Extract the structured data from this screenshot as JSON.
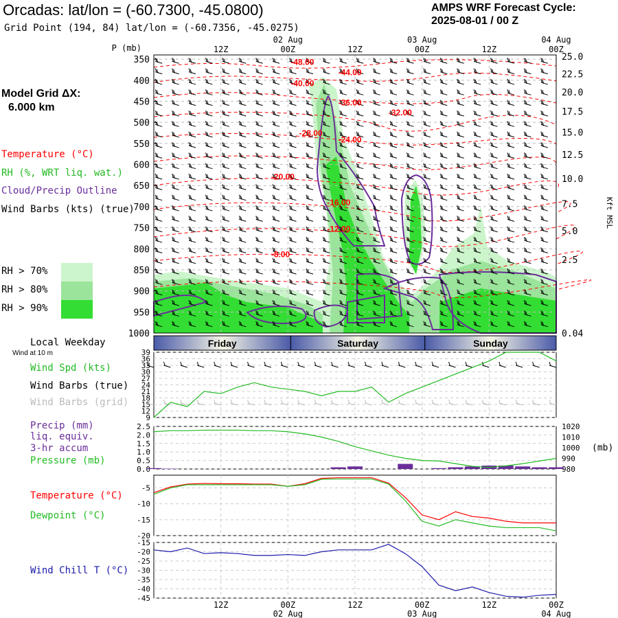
{
  "header": {
    "title": "Orcadas:  lat/lon = (-60.7300, -45.0800)",
    "subtitle": "Grid Point (194, 84) lat/lon = (-60.7356, -45.0275)",
    "cycle_label": "AMPS WRF Forecast Cycle:",
    "cycle_value": "2025-08-01 / 00  Z",
    "grid_label": "Model Grid ΔX:",
    "grid_value": "6.000 km"
  },
  "colors": {
    "temperature": "#ff0000",
    "rh": "#22bb22",
    "rh70": "#ccf5cc",
    "rh80": "#9be49b",
    "rh90": "#33dd33",
    "cloud": "#6a2d9a",
    "wind_chill": "#1a1aaa",
    "day_band_dark": "#4a5aa8",
    "day_band_light": "#f4f4e4"
  },
  "legend": {
    "temperature": "Temperature (°C)",
    "rh": "RH (%, WRT liq. wat.)",
    "cloud": "Cloud/Precip Outline",
    "wind": "Wind Barbs (kts) (true)",
    "rh70": "RH > 70%",
    "rh80": "RH > 80%",
    "rh90": "RH > 90%"
  },
  "time_axis": {
    "hours": [
      0,
      72
    ],
    "ticks": [
      {
        "hour": 12,
        "top": "12Z",
        "bottom": "12Z",
        "date": ""
      },
      {
        "hour": 24,
        "top": "00Z",
        "bottom": "00Z",
        "date": "02 Aug"
      },
      {
        "hour": 36,
        "top": "12Z",
        "bottom": "12Z",
        "date": ""
      },
      {
        "hour": 48,
        "top": "00Z",
        "bottom": "00Z",
        "date": "03 Aug"
      },
      {
        "hour": 60,
        "top": "12Z",
        "bottom": "12Z",
        "date": ""
      },
      {
        "hour": 72,
        "top": "00Z",
        "bottom": "00Z",
        "date": "04 Aug"
      }
    ]
  },
  "chart_data": [
    {
      "type": "heatmap",
      "title": "",
      "ylabel": "P (mb)",
      "y_right_label": "Kft MSL",
      "ylim": [
        1000,
        340
      ],
      "y_ticks": [
        350,
        400,
        450,
        500,
        550,
        600,
        650,
        700,
        750,
        800,
        850,
        900,
        950,
        1000
      ],
      "y_right_ticks": [
        {
          "p": 343,
          "label": "25.0"
        },
        {
          "p": 385,
          "label": "22.5"
        },
        {
          "p": 428,
          "label": "20.0"
        },
        {
          "p": 474,
          "label": "17.5"
        },
        {
          "p": 523,
          "label": "15.0"
        },
        {
          "p": 576,
          "label": "12.5"
        },
        {
          "p": 633,
          "label": "10.0"
        },
        {
          "p": 693,
          "label": "7.5"
        },
        {
          "p": 757,
          "label": "5.0"
        },
        {
          "p": 826,
          "label": "2.5"
        },
        {
          "p": 1000,
          "label": "0.04"
        }
      ],
      "temperature_contours": [
        {
          "label": "-48.00",
          "hour": 24.5,
          "p": 364
        },
        {
          "label": "-44.00",
          "hour": 33,
          "p": 388
        },
        {
          "label": "-40.00",
          "hour": 24.5,
          "p": 414
        },
        {
          "label": "-36.00",
          "hour": 33,
          "p": 460
        },
        {
          "label": "-32.00",
          "hour": 42,
          "p": 483
        },
        {
          "label": "-28.00",
          "hour": 26,
          "p": 532
        },
        {
          "label": "-24.00",
          "hour": 33,
          "p": 548
        },
        {
          "label": "-20.00",
          "hour": 21,
          "p": 636
        },
        {
          "label": "-16.00",
          "hour": 31,
          "p": 697
        },
        {
          "label": "-12.00",
          "hour": 31,
          "p": 760
        },
        {
          "label": "-8.00",
          "hour": 21,
          "p": 820
        }
      ],
      "day_bands": [
        {
          "label": "Friday",
          "start": 0,
          "end": 24.5
        },
        {
          "label": "Saturday",
          "start": 24.5,
          "end": 48.5
        },
        {
          "label": "Sunday",
          "start": 48.5,
          "end": 72
        }
      ]
    },
    {
      "type": "line",
      "title": "Wind at 10 m",
      "group_label": "Local Weekday",
      "labels": [
        "Wind Spd (kts)",
        "Wind Barbs (true)",
        "Wind Barbs (grid)"
      ],
      "ylim": [
        9,
        39
      ],
      "y_ticks": [
        9,
        12,
        15,
        18,
        21,
        24,
        27,
        30,
        33,
        36,
        39
      ],
      "x": [
        0,
        3,
        6,
        9,
        12,
        15,
        18,
        21,
        24,
        27,
        30,
        33,
        36,
        39,
        42,
        45,
        48,
        51,
        54,
        57,
        60,
        63,
        66,
        69,
        72
      ],
      "series": [
        {
          "name": "Wind Spd (kts)",
          "values": [
            9,
            16,
            14,
            21,
            20,
            23,
            25,
            23,
            22,
            21,
            19,
            21,
            21,
            23,
            16,
            20,
            23,
            26,
            29,
            32,
            35,
            40,
            40,
            39,
            35
          ]
        }
      ]
    },
    {
      "type": "bar",
      "labels": [
        "Precip (mm)",
        "liq. equiv.",
        "3-hr accum",
        "Pressure (mb)"
      ],
      "ylim": [
        0,
        2.5
      ],
      "y_ticks": [
        "0.0",
        "0.5",
        "1.0",
        "1.5",
        "2.0",
        "2.5"
      ],
      "y2_lim": [
        980,
        1020
      ],
      "y2_ticks": [
        980,
        990,
        1000,
        1010,
        1020
      ],
      "y2_label": "(mb)",
      "x": [
        0,
        3,
        6,
        9,
        12,
        15,
        18,
        21,
        24,
        27,
        30,
        33,
        36,
        39,
        42,
        45,
        48,
        51,
        54,
        57,
        60,
        63,
        66,
        69,
        72
      ],
      "series": [
        {
          "name": "Precip (mm)",
          "values": [
            0.05,
            0.02,
            0.0,
            0.0,
            0.0,
            0.0,
            0.0,
            0.0,
            0.0,
            0.0,
            0.0,
            0.1,
            0.15,
            0.0,
            0.0,
            0.3,
            0.0,
            0.05,
            0.1,
            0.15,
            0.2,
            0.2,
            0.15,
            0.1,
            0.1
          ]
        },
        {
          "name": "Pressure (mb)",
          "values": [
            1015,
            1016,
            1016,
            1016.5,
            1016.5,
            1016.5,
            1016,
            1016,
            1015,
            1013,
            1010,
            1006,
            1001,
            997,
            993,
            990,
            988,
            987.5,
            985,
            982.5,
            981.5,
            983,
            985,
            987.5,
            990
          ]
        }
      ]
    },
    {
      "type": "line",
      "labels": [
        "Temperature (°C)",
        "Dewpoint (°C)"
      ],
      "ylim": [
        -20,
        -1
      ],
      "y_ticks": [
        -5,
        -10,
        -15,
        -20
      ],
      "x": [
        0,
        3,
        6,
        9,
        12,
        15,
        18,
        21,
        24,
        27,
        30,
        33,
        36,
        39,
        42,
        45,
        48,
        51,
        54,
        57,
        60,
        63,
        66,
        69,
        72
      ],
      "series": [
        {
          "name": "Temperature (°C)",
          "values": [
            -6.5,
            -4.7,
            -3.8,
            -3.6,
            -3.7,
            -3.7,
            -3.8,
            -3.8,
            -4.5,
            -3.7,
            -2.0,
            -1.8,
            -1.8,
            -1.8,
            -3.5,
            -8.0,
            -13.5,
            -15.0,
            -12.5,
            -14.0,
            -14.5,
            -15.5,
            -16.0,
            -16.0,
            -16.0
          ]
        },
        {
          "name": "Dewpoint (°C)",
          "values": [
            -7.0,
            -5.0,
            -4.0,
            -4.0,
            -4.0,
            -4.0,
            -4.0,
            -4.0,
            -4.5,
            -4.0,
            -2.3,
            -2.2,
            -2.2,
            -2.2,
            -3.8,
            -9.0,
            -15.5,
            -17.0,
            -15.0,
            -16.0,
            -17.0,
            -17.5,
            -17.5,
            -17.5,
            -18.5
          ]
        }
      ]
    },
    {
      "type": "line",
      "labels": [
        "Wind Chill T (°C)"
      ],
      "ylim": [
        -45,
        -15
      ],
      "y_ticks": [
        -15,
        -20,
        -25,
        -30,
        -35,
        -40,
        -45
      ],
      "x": [
        0,
        3,
        6,
        9,
        12,
        15,
        18,
        21,
        24,
        27,
        30,
        33,
        36,
        39,
        42,
        45,
        48,
        51,
        54,
        57,
        60,
        63,
        66,
        69,
        72
      ],
      "series": [
        {
          "name": "Wind Chill T (°C)",
          "values": [
            -19,
            -20,
            -18,
            -21,
            -20.5,
            -21,
            -22,
            -22,
            -21.5,
            -22,
            -20,
            -19,
            -19,
            -19,
            -16,
            -21,
            -28,
            -38,
            -41,
            -39,
            -42,
            -44,
            -44.5,
            -43.5,
            -43
          ]
        }
      ]
    }
  ]
}
